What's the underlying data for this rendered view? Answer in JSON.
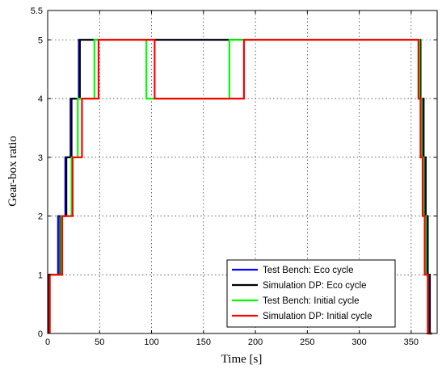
{
  "chart_data": {
    "type": "line",
    "xlabel": "Time [s]",
    "ylabel": "Gear-box ratio",
    "xlim": [
      0,
      375
    ],
    "ylim": [
      0,
      5.5
    ],
    "xticks": [
      0,
      50,
      100,
      150,
      200,
      250,
      300,
      350
    ],
    "yticks": [
      0,
      1,
      2,
      3,
      4,
      5,
      5.5
    ],
    "grid": true,
    "legend_position": "bottom-right",
    "series": [
      {
        "name": "Test Bench: Eco cycle",
        "color": "#0000ff",
        "points": [
          [
            1,
            0
          ],
          [
            1,
            1
          ],
          [
            10,
            1
          ],
          [
            10,
            2
          ],
          [
            17,
            2
          ],
          [
            17,
            3
          ],
          [
            22,
            3
          ],
          [
            22,
            4
          ],
          [
            30,
            4
          ],
          [
            30,
            5
          ],
          [
            358,
            5
          ],
          [
            358,
            4
          ],
          [
            361,
            4
          ],
          [
            361,
            3
          ],
          [
            363,
            3
          ],
          [
            363,
            2
          ],
          [
            365,
            2
          ],
          [
            365,
            1
          ],
          [
            367,
            1
          ],
          [
            367,
            0
          ],
          [
            370,
            0
          ]
        ]
      },
      {
        "name": "Simulation DP: Eco cycle",
        "color": "#000000",
        "points": [
          [
            1,
            0
          ],
          [
            1,
            1
          ],
          [
            12,
            1
          ],
          [
            12,
            2
          ],
          [
            18,
            2
          ],
          [
            18,
            3
          ],
          [
            23,
            3
          ],
          [
            23,
            4
          ],
          [
            31,
            4
          ],
          [
            31,
            5
          ],
          [
            359,
            5
          ],
          [
            359,
            4
          ],
          [
            362,
            4
          ],
          [
            362,
            3
          ],
          [
            364,
            3
          ],
          [
            364,
            2
          ],
          [
            366,
            2
          ],
          [
            366,
            1
          ],
          [
            368,
            1
          ],
          [
            368,
            0
          ],
          [
            370,
            0
          ]
        ]
      },
      {
        "name": "Test Bench: Initial cycle",
        "color": "#00ff00",
        "points": [
          [
            2,
            0
          ],
          [
            2,
            1
          ],
          [
            13,
            1
          ],
          [
            13,
            2
          ],
          [
            23,
            2
          ],
          [
            23,
            3
          ],
          [
            29,
            3
          ],
          [
            29,
            4
          ],
          [
            45,
            4
          ],
          [
            45,
            5
          ],
          [
            95,
            5
          ],
          [
            95,
            4
          ],
          [
            175,
            4
          ],
          [
            175,
            5
          ],
          [
            358,
            5
          ],
          [
            358,
            4
          ],
          [
            360,
            4
          ],
          [
            360,
            3
          ],
          [
            362,
            3
          ],
          [
            362,
            2
          ],
          [
            364,
            2
          ],
          [
            364,
            1
          ],
          [
            366,
            1
          ],
          [
            366,
            0
          ],
          [
            370,
            0
          ]
        ]
      },
      {
        "name": "Simulation DP: Initial cycle",
        "color": "#ff0000",
        "points": [
          [
            2,
            0
          ],
          [
            2,
            1
          ],
          [
            14,
            1
          ],
          [
            14,
            2
          ],
          [
            24,
            2
          ],
          [
            24,
            3
          ],
          [
            33,
            3
          ],
          [
            33,
            4
          ],
          [
            49,
            4
          ],
          [
            49,
            5
          ],
          [
            103,
            5
          ],
          [
            103,
            4
          ],
          [
            189,
            4
          ],
          [
            189,
            5
          ],
          [
            357,
            5
          ],
          [
            357,
            4
          ],
          [
            359,
            4
          ],
          [
            359,
            3
          ],
          [
            361,
            3
          ],
          [
            361,
            2
          ],
          [
            363,
            2
          ],
          [
            363,
            1
          ],
          [
            366,
            1
          ],
          [
            366,
            0
          ],
          [
            370,
            0
          ]
        ]
      }
    ]
  }
}
